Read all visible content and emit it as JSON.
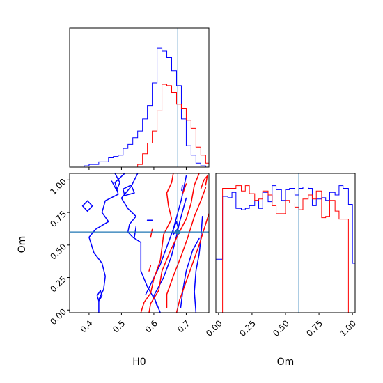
{
  "chart_data": {
    "type": "corner",
    "params": [
      "H0",
      "Om"
    ],
    "truths": {
      "H0": 0.674,
      "Om": 0.6
    },
    "colors": {
      "run1": "#0000ff",
      "run2": "#ff0000",
      "truth": "#1f77b4"
    },
    "panels": {
      "H0_hist": {
        "xlim": [
          0.34,
          0.77
        ],
        "xticks": [
          0.4,
          0.5,
          0.6,
          0.7
        ],
        "series": [
          {
            "color": "#0000ff",
            "edges": [
              0.34,
              0.355,
              0.37,
              0.385,
              0.4,
              0.415,
              0.43,
              0.445,
              0.46,
              0.475,
              0.49,
              0.505,
              0.52,
              0.535,
              0.55,
              0.565,
              0.58,
              0.595,
              0.61,
              0.625,
              0.64,
              0.655,
              0.67,
              0.685,
              0.7,
              0.715,
              0.73,
              0.745,
              0.76,
              0.77
            ],
            "heights": [
              0.0,
              0.0,
              0.0,
              0.01,
              0.02,
              0.02,
              0.04,
              0.04,
              0.07,
              0.08,
              0.09,
              0.14,
              0.17,
              0.22,
              0.27,
              0.36,
              0.46,
              0.63,
              0.89,
              0.87,
              0.82,
              0.72,
              0.61,
              0.36,
              0.16,
              0.09,
              0.03,
              0.01,
              0.0
            ]
          },
          {
            "color": "#ff0000",
            "edges": [
              0.34,
              0.355,
              0.37,
              0.385,
              0.4,
              0.415,
              0.43,
              0.445,
              0.46,
              0.475,
              0.49,
              0.505,
              0.52,
              0.535,
              0.55,
              0.565,
              0.58,
              0.595,
              0.61,
              0.625,
              0.64,
              0.655,
              0.67,
              0.685,
              0.7,
              0.715,
              0.73,
              0.745,
              0.76,
              0.77
            ],
            "heights": [
              0,
              0,
              0,
              0,
              0,
              0,
              0,
              0,
              0,
              0,
              0,
              0,
              0,
              0,
              0.02,
              0.1,
              0.18,
              0.27,
              0.42,
              0.62,
              0.61,
              0.56,
              0.47,
              0.44,
              0.35,
              0.29,
              0.15,
              0.09,
              0.03
            ]
          }
        ]
      },
      "Om_hist": {
        "xlim": [
          -0.02,
          1.02
        ],
        "xticks": [
          0.0,
          0.25,
          0.5,
          0.75,
          1.0
        ],
        "xticklabels": [
          "0.00",
          "0.25",
          "0.50",
          "0.75",
          "1.00"
        ],
        "series": [
          {
            "color": "#0000ff",
            "edges": [
              -0.02,
              0.0,
              0.03,
              0.07,
              0.1,
              0.13,
              0.17,
              0.2,
              0.23,
              0.27,
              0.3,
              0.33,
              0.37,
              0.4,
              0.43,
              0.47,
              0.5,
              0.53,
              0.57,
              0.6,
              0.63,
              0.67,
              0.7,
              0.73,
              0.77,
              0.8,
              0.83,
              0.87,
              0.9,
              0.93,
              0.97,
              1.0,
              1.02
            ],
            "heights": [
              0.4,
              0.4,
              0.87,
              0.86,
              0.9,
              0.78,
              0.77,
              0.78,
              0.8,
              0.84,
              0.78,
              0.9,
              0.83,
              0.95,
              0.92,
              0.84,
              0.92,
              0.93,
              0.88,
              0.93,
              0.94,
              0.93,
              0.8,
              0.85,
              0.86,
              0.84,
              0.9,
              0.88,
              0.95,
              0.93,
              0.81,
              0.37
            ]
          },
          {
            "color": "#ff0000",
            "edges": [
              -0.02,
              0.0,
              0.03,
              0.07,
              0.1,
              0.13,
              0.17,
              0.2,
              0.23,
              0.27,
              0.3,
              0.33,
              0.37,
              0.4,
              0.43,
              0.47,
              0.5,
              0.53,
              0.57,
              0.6,
              0.63,
              0.67,
              0.7,
              0.73,
              0.77,
              0.8,
              0.83,
              0.87,
              0.9,
              0.93,
              0.97,
              1.0,
              1.02
            ],
            "heights": [
              0.0,
              0.0,
              0.93,
              0.93,
              0.93,
              0.95,
              0.91,
              0.95,
              0.89,
              0.84,
              0.85,
              0.91,
              0.88,
              0.8,
              0.74,
              0.74,
              0.84,
              0.82,
              0.79,
              0.77,
              0.85,
              0.88,
              0.85,
              0.91,
              0.71,
              0.72,
              0.84,
              0.76,
              0.7,
              0.7,
              0.0,
              0.0
            ]
          }
        ]
      },
      "H0_Om_contour": {
        "xlim": [
          0.34,
          0.77
        ],
        "ylim": [
          -0.02,
          1.05
        ],
        "xticks": [
          0.4,
          0.5,
          0.6,
          0.7
        ],
        "yticks": [
          0.0,
          0.25,
          0.5,
          0.75,
          1.0
        ],
        "yticklabels": [
          "0.00",
          "0.25",
          "0.50",
          "0.75",
          "1.00"
        ],
        "contours": [
          {
            "color": "#0000ff",
            "points": [
              [
                0.43,
                -0.02
              ],
              [
                0.43,
                0.08
              ],
              [
                0.445,
                0.16
              ],
              [
                0.45,
                0.26
              ],
              [
                0.44,
                0.36
              ],
              [
                0.415,
                0.44
              ],
              [
                0.4,
                0.56
              ],
              [
                0.42,
                0.62
              ],
              [
                0.46,
                0.68
              ],
              [
                0.44,
                0.75
              ],
              [
                0.45,
                0.84
              ],
              [
                0.49,
                0.89
              ],
              [
                0.48,
                0.98
              ],
              [
                0.51,
                1.05
              ]
            ]
          },
          {
            "color": "#0000ff",
            "points": [
              [
                0.55,
                1.05
              ],
              [
                0.53,
                0.95
              ],
              [
                0.5,
                0.86
              ],
              [
                0.52,
                0.78
              ],
              [
                0.545,
                0.72
              ],
              [
                0.525,
                0.66
              ],
              [
                0.52,
                0.6
              ],
              [
                0.535,
                0.56
              ],
              [
                0.56,
                0.52
              ],
              [
                0.56,
                0.4
              ],
              [
                0.56,
                0.3
              ],
              [
                0.58,
                0.18
              ],
              [
                0.605,
                0.07
              ],
              [
                0.62,
                -0.02
              ]
            ]
          },
          {
            "color": "#0000ff",
            "points": [
              [
                0.575,
                0.12
              ],
              [
                0.62,
                0.35
              ],
              [
                0.66,
                0.62
              ],
              [
                0.685,
                0.85
              ],
              [
                0.7,
                1.03
              ]
            ]
          },
          {
            "color": "#0000ff",
            "points": [
              [
                0.61,
                0.03
              ],
              [
                0.6,
                0.11
              ],
              [
                0.63,
                0.25
              ],
              [
                0.655,
                0.42
              ],
              [
                0.67,
                0.57
              ],
              [
                0.68,
                0.68
              ],
              [
                0.7,
                0.86
              ]
            ]
          },
          {
            "color": "#0000ff",
            "points": [
              [
                0.73,
                -0.02
              ],
              [
                0.725,
                0.14
              ],
              [
                0.73,
                0.3
              ],
              [
                0.74,
                0.43
              ],
              [
                0.745,
                0.55
              ],
              [
                0.75,
                0.72
              ]
            ]
          },
          {
            "color": "#0000ff",
            "points": [
              [
                0.683,
                0.02
              ],
              [
                0.69,
                0.16
              ],
              [
                0.7,
                0.3
              ],
              [
                0.72,
                0.46
              ],
              [
                0.74,
                0.55
              ]
            ]
          },
          {
            "color": "#0000ff",
            "points": [
              [
                0.47,
                0.99
              ],
              [
                0.485,
                0.92
              ],
              [
                0.495,
                0.98
              ],
              [
                0.48,
                1.05
              ]
            ]
          },
          {
            "color": "#0000ff",
            "points": [
              [
                0.395,
                0.76
              ],
              [
                0.41,
                0.8
              ],
              [
                0.395,
                0.84
              ],
              [
                0.38,
                0.8
              ],
              [
                0.395,
                0.76
              ]
            ]
          },
          {
            "color": "#0000ff",
            "points": [
              [
                0.51,
                0.88
              ],
              [
                0.54,
                0.9
              ],
              [
                0.53,
                0.96
              ],
              [
                0.505,
                0.93
              ],
              [
                0.51,
                0.88
              ]
            ]
          },
          {
            "color": "#0000ff",
            "points": [
              [
                0.43,
                0.07
              ],
              [
                0.44,
                0.11
              ],
              [
                0.435,
                0.15
              ],
              [
                0.425,
                0.11
              ],
              [
                0.43,
                0.07
              ]
            ]
          },
          {
            "color": "#0000ff",
            "points": [
              [
                0.54,
                0.56
              ],
              [
                0.545,
                0.64
              ]
            ]
          },
          {
            "color": "#0000ff",
            "points": [
              [
                0.58,
                0.69
              ],
              [
                0.595,
                0.69
              ]
            ]
          },
          {
            "color": "#0000ff",
            "points": [
              [
                0.686,
                0.92
              ],
              [
                0.688,
                0.96
              ]
            ]
          },
          {
            "color": "#0000ff",
            "points": [
              [
                0.66,
                0.58
              ],
              [
                0.675,
                0.63
              ],
              [
                0.67,
                0.68
              ],
              [
                0.66,
                0.62
              ],
              [
                0.66,
                0.58
              ]
            ]
          },
          {
            "color": "#ff0000",
            "points": [
              [
                0.56,
                -0.02
              ],
              [
                0.57,
                0.06
              ],
              [
                0.59,
                0.13
              ],
              [
                0.6,
                0.24
              ],
              [
                0.62,
                0.38
              ],
              [
                0.63,
                0.58
              ],
              [
                0.655,
                0.7
              ],
              [
                0.645,
                0.8
              ],
              [
                0.64,
                0.9
              ],
              [
                0.655,
                0.98
              ],
              [
                0.66,
                1.05
              ]
            ]
          },
          {
            "color": "#ff0000",
            "points": [
              [
                0.585,
                -0.02
              ],
              [
                0.59,
                0.05
              ],
              [
                0.615,
                0.15
              ],
              [
                0.625,
                0.3
              ],
              [
                0.65,
                0.45
              ],
              [
                0.675,
                0.58
              ],
              [
                0.7,
                0.7
              ],
              [
                0.715,
                0.82
              ],
              [
                0.725,
                0.96
              ],
              [
                0.74,
                1.05
              ]
            ]
          },
          {
            "color": "#ff0000",
            "points": [
              [
                0.64,
                0.02
              ],
              [
                0.64,
                0.12
              ],
              [
                0.66,
                0.26
              ],
              [
                0.685,
                0.42
              ],
              [
                0.705,
                0.56
              ],
              [
                0.725,
                0.72
              ],
              [
                0.745,
                0.84
              ],
              [
                0.76,
                0.94
              ]
            ]
          },
          {
            "color": "#ff0000",
            "points": [
              [
                0.67,
                -0.02
              ],
              [
                0.68,
                0.08
              ],
              [
                0.7,
                0.22
              ],
              [
                0.72,
                0.36
              ],
              [
                0.74,
                0.5
              ],
              [
                0.755,
                0.62
              ],
              [
                0.77,
                0.74
              ]
            ]
          },
          {
            "color": "#ff0000",
            "points": [
              [
                0.745,
                0.93
              ],
              [
                0.755,
                1.0
              ],
              [
                0.765,
                1.03
              ],
              [
                0.76,
                0.96
              ]
            ]
          },
          {
            "color": "#ff0000",
            "points": [
              [
                0.69,
                0.9
              ],
              [
                0.7,
                0.97
              ]
            ]
          },
          {
            "color": "#ff0000",
            "points": [
              [
                0.585,
                0.3
              ],
              [
                0.59,
                0.34
              ]
            ]
          },
          {
            "color": "#ff0000",
            "points": [
              [
                0.59,
                0.56
              ],
              [
                0.595,
                0.62
              ]
            ]
          }
        ]
      }
    },
    "labels": {
      "x_left": "H0",
      "x_right": "Om",
      "y_left": "Om"
    }
  }
}
